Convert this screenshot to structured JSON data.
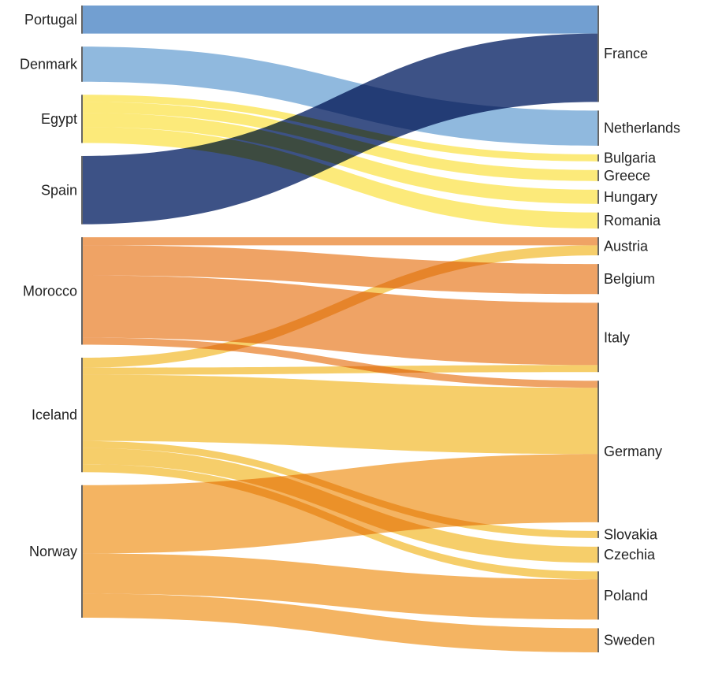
{
  "chart_data": {
    "type": "sankey",
    "title": "",
    "sources": [
      {
        "name": "Portugal",
        "color": "#5b8fca"
      },
      {
        "name": "Denmark",
        "color": "#7eaed8"
      },
      {
        "name": "Egypt",
        "color": "#fbe764"
      },
      {
        "name": "Spain",
        "color": "#1d3672"
      },
      {
        "name": "Morocco",
        "color": "#ec944c"
      },
      {
        "name": "Iceland",
        "color": "#f5c651"
      },
      {
        "name": "Norway",
        "color": "#f2a848"
      }
    ],
    "targets": [
      "France",
      "Netherlands",
      "Bulgaria",
      "Greece",
      "Hungary",
      "Romania",
      "Austria",
      "Belgium",
      "Italy",
      "Germany",
      "Slovakia",
      "Czechia",
      "Poland",
      "Sweden"
    ],
    "links": [
      {
        "source": "Portugal",
        "target": "France",
        "value": 28
      },
      {
        "source": "Denmark",
        "target": "Netherlands",
        "value": 35
      },
      {
        "source": "Egypt",
        "target": "Bulgaria",
        "value": 7
      },
      {
        "source": "Egypt",
        "target": "Greece",
        "value": 11
      },
      {
        "source": "Egypt",
        "target": "Hungary",
        "value": 14
      },
      {
        "source": "Egypt",
        "target": "Romania",
        "value": 16
      },
      {
        "source": "Spain",
        "target": "France",
        "value": 68
      },
      {
        "source": "Morocco",
        "target": "Austria",
        "value": 8
      },
      {
        "source": "Morocco",
        "target": "Belgium",
        "value": 30
      },
      {
        "source": "Morocco",
        "target": "Italy",
        "value": 62
      },
      {
        "source": "Morocco",
        "target": "Germany",
        "value": 7
      },
      {
        "source": "Iceland",
        "target": "Austria",
        "value": 10
      },
      {
        "source": "Iceland",
        "target": "Italy",
        "value": 7
      },
      {
        "source": "Iceland",
        "target": "Germany",
        "value": 66
      },
      {
        "source": "Iceland",
        "target": "Slovakia",
        "value": 7
      },
      {
        "source": "Iceland",
        "target": "Czechia",
        "value": 16
      },
      {
        "source": "Iceland",
        "target": "Poland",
        "value": 8
      },
      {
        "source": "Norway",
        "target": "Germany",
        "value": 68
      },
      {
        "source": "Norway",
        "target": "Poland",
        "value": 40
      },
      {
        "source": "Norway",
        "target": "Sweden",
        "value": 24
      }
    ]
  }
}
